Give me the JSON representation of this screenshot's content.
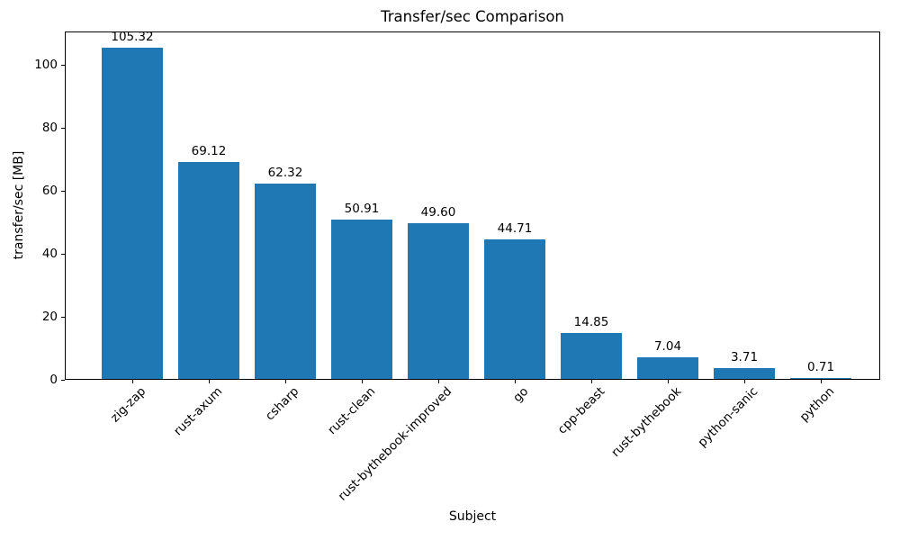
{
  "chart_data": {
    "type": "bar",
    "title": "Transfer/sec Comparison",
    "xlabel": "Subject",
    "ylabel": "transfer/sec [MB]",
    "categories": [
      "zig-zap",
      "rust-axum",
      "csharp",
      "rust-clean",
      "rust-bythebook-improved",
      "go",
      "cpp-beast",
      "rust-bythebook",
      "python-sanic",
      "python"
    ],
    "values": [
      105.32,
      69.12,
      62.32,
      50.91,
      49.6,
      44.71,
      14.85,
      7.04,
      3.71,
      0.71
    ],
    "value_labels": [
      "105.32",
      "69.12",
      "62.32",
      "50.91",
      "49.60",
      "44.71",
      "14.85",
      "7.04",
      "3.71",
      "0.71"
    ],
    "bar_color": "#1f77b4",
    "text_color": "#000000",
    "background_color": "#ffffff",
    "ylim": [
      0,
      110.6
    ],
    "yticks": [
      0,
      20,
      40,
      60,
      80,
      100
    ],
    "grid": false,
    "legend": "none",
    "x_tick_rotation_deg": 45
  }
}
